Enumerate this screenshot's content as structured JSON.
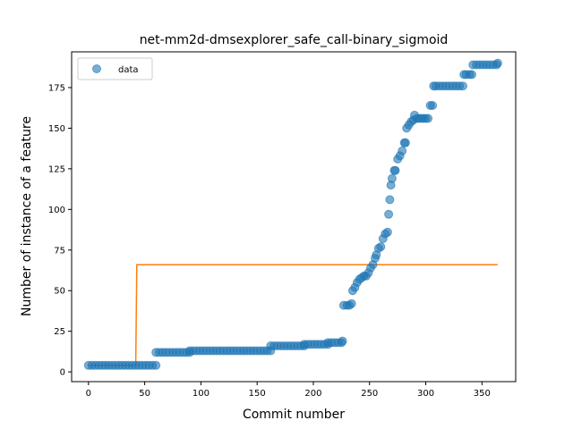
{
  "chart_data": {
    "type": "scatter",
    "title": "net-mm2d-dmsexplorer_safe_call-binary_sigmoid",
    "xlabel": "Commit number",
    "ylabel": "Number of instance of a feature",
    "xlim": [
      -15,
      380
    ],
    "ylim": [
      -6,
      197
    ],
    "xticks": [
      0,
      50,
      100,
      150,
      200,
      250,
      300,
      350
    ],
    "yticks": [
      0,
      25,
      50,
      75,
      100,
      125,
      150,
      175
    ],
    "grid": false,
    "legend": {
      "placement": "top-left",
      "entries": [
        "data"
      ]
    },
    "colors": {
      "data": "#1f77b4",
      "fit": "#ff7f0e"
    },
    "series": [
      {
        "name": "data",
        "kind": "scatter",
        "x": [
          0,
          3,
          6,
          9,
          12,
          15,
          18,
          21,
          24,
          27,
          30,
          33,
          36,
          39,
          42,
          45,
          48,
          51,
          54,
          57,
          60,
          60,
          63,
          66,
          69,
          72,
          75,
          78,
          81,
          84,
          87,
          90,
          90,
          93,
          96,
          99,
          102,
          105,
          108,
          111,
          114,
          117,
          120,
          123,
          126,
          129,
          132,
          135,
          138,
          141,
          144,
          147,
          150,
          153,
          156,
          159,
          162,
          162,
          165,
          168,
          171,
          174,
          177,
          180,
          183,
          186,
          189,
          192,
          192,
          195,
          198,
          201,
          204,
          207,
          210,
          213,
          213,
          216,
          219,
          222,
          225,
          226,
          227,
          230,
          232,
          234,
          235,
          237,
          239,
          241,
          243,
          245,
          247,
          249,
          251,
          253,
          255,
          256,
          258,
          260,
          262,
          264,
          266,
          267,
          268,
          269,
          270,
          272,
          273,
          275,
          277,
          279,
          281,
          282,
          283,
          285,
          287,
          289,
          290,
          292,
          294,
          296,
          298,
          300,
          302,
          304,
          306,
          307,
          309,
          312,
          315,
          318,
          321,
          324,
          327,
          330,
          333,
          334,
          336,
          339,
          341,
          342,
          345,
          348,
          351,
          354,
          357,
          360,
          363,
          364
        ],
        "y": [
          4,
          4,
          4,
          4,
          4,
          4,
          4,
          4,
          4,
          4,
          4,
          4,
          4,
          4,
          4,
          4,
          4,
          4,
          4,
          4,
          4,
          12,
          12,
          12,
          12,
          12,
          12,
          12,
          12,
          12,
          12,
          12,
          13,
          13,
          13,
          13,
          13,
          13,
          13,
          13,
          13,
          13,
          13,
          13,
          13,
          13,
          13,
          13,
          13,
          13,
          13,
          13,
          13,
          13,
          13,
          13,
          13,
          16,
          16,
          16,
          16,
          16,
          16,
          16,
          16,
          16,
          16,
          16,
          17,
          17,
          17,
          17,
          17,
          17,
          17,
          17,
          18,
          18,
          18,
          18,
          18,
          19,
          41,
          41,
          41,
          42,
          50,
          52,
          55,
          57,
          58,
          59,
          59,
          61,
          64,
          66,
          70,
          72,
          76,
          77,
          82,
          85,
          86,
          97,
          106,
          115,
          119,
          124,
          124,
          131,
          133,
          136,
          141,
          141,
          150,
          152,
          154,
          155,
          158,
          156,
          156,
          156,
          156,
          156,
          156,
          164,
          164,
          176,
          176,
          176,
          176,
          176,
          176,
          176,
          176,
          176,
          176,
          183,
          183,
          183,
          183,
          189,
          189,
          189,
          189,
          189,
          189,
          189,
          189,
          190
        ]
      },
      {
        "name": "",
        "kind": "step-line",
        "x": [
          0,
          42,
          42,
          43,
          364
        ],
        "y": [
          4,
          4,
          4,
          66,
          66
        ]
      }
    ]
  }
}
